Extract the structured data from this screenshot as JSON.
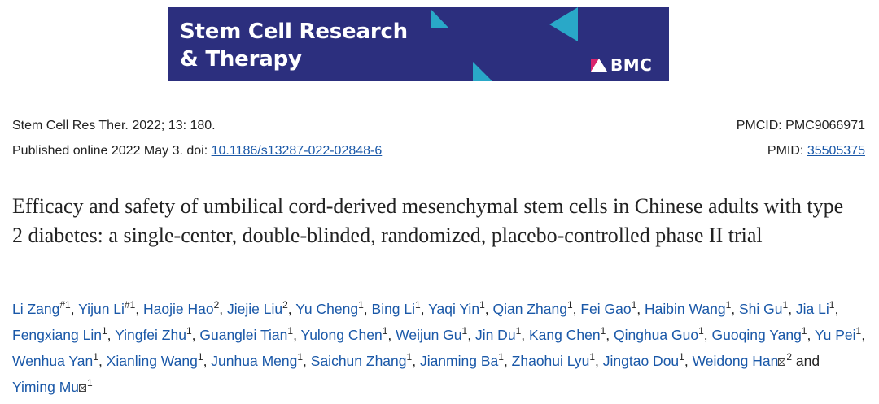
{
  "banner": {
    "journal_line1": "Stem Cell Research",
    "journal_line2": "& Therapy",
    "publisher": "BMC",
    "colors": {
      "background": "#2c2f7e",
      "accent": "#29a8c8",
      "mark": "#d9246b"
    }
  },
  "citation": {
    "journal_ref": "Stem Cell Res Ther. 2022; 13: 180.",
    "published_prefix": "Published online 2022 May 3. doi: ",
    "doi": "10.1186/s13287-022-02848-6",
    "pmcid": "PMCID: PMC9066971",
    "pmid_label": "PMID: ",
    "pmid": "35505375"
  },
  "title": "Efficacy and safety of umbilical cord-derived mesenchymal stem cells in Chinese adults with type 2 diabetes: a single-center, double-blinded, randomized, placebo-controlled phase II trial",
  "authors": [
    {
      "name": "Li Zang",
      "aff": "#1"
    },
    {
      "name": "Yijun Li",
      "aff": "#1"
    },
    {
      "name": "Haojie Hao",
      "aff": "2"
    },
    {
      "name": "Jiejie Liu",
      "aff": "2"
    },
    {
      "name": "Yu Cheng",
      "aff": "1"
    },
    {
      "name": "Bing Li",
      "aff": "1"
    },
    {
      "name": "Yaqi Yin",
      "aff": "1"
    },
    {
      "name": "Qian Zhang",
      "aff": "1"
    },
    {
      "name": "Fei Gao",
      "aff": "1"
    },
    {
      "name": "Haibin Wang",
      "aff": "1"
    },
    {
      "name": "Shi Gu",
      "aff": "1"
    },
    {
      "name": "Jia Li",
      "aff": "1"
    },
    {
      "name": "Fengxiang Lin",
      "aff": "1"
    },
    {
      "name": "Yingfei Zhu",
      "aff": "1"
    },
    {
      "name": "Guanglei Tian",
      "aff": "1"
    },
    {
      "name": "Yulong Chen",
      "aff": "1"
    },
    {
      "name": "Weijun Gu",
      "aff": "1"
    },
    {
      "name": "Jin Du",
      "aff": "1"
    },
    {
      "name": "Kang Chen",
      "aff": "1"
    },
    {
      "name": "Qinghua Guo",
      "aff": "1"
    },
    {
      "name": "Guoqing Yang",
      "aff": "1"
    },
    {
      "name": "Yu Pei",
      "aff": "1"
    },
    {
      "name": "Wenhua Yan",
      "aff": "1"
    },
    {
      "name": "Xianling Wang",
      "aff": "1"
    },
    {
      "name": "Junhua Meng",
      "aff": "1"
    },
    {
      "name": "Saichun Zhang",
      "aff": "1"
    },
    {
      "name": "Jianming Ba",
      "aff": "1"
    },
    {
      "name": "Zhaohui Lyu",
      "aff": "1"
    },
    {
      "name": "Jingtao Dou",
      "aff": "1"
    },
    {
      "name": "Weidong Han",
      "aff": "2",
      "mail": true
    },
    {
      "name": "Yiming Mu",
      "aff": "1",
      "mail": true,
      "last": true
    }
  ],
  "authors_conjunction": "and"
}
